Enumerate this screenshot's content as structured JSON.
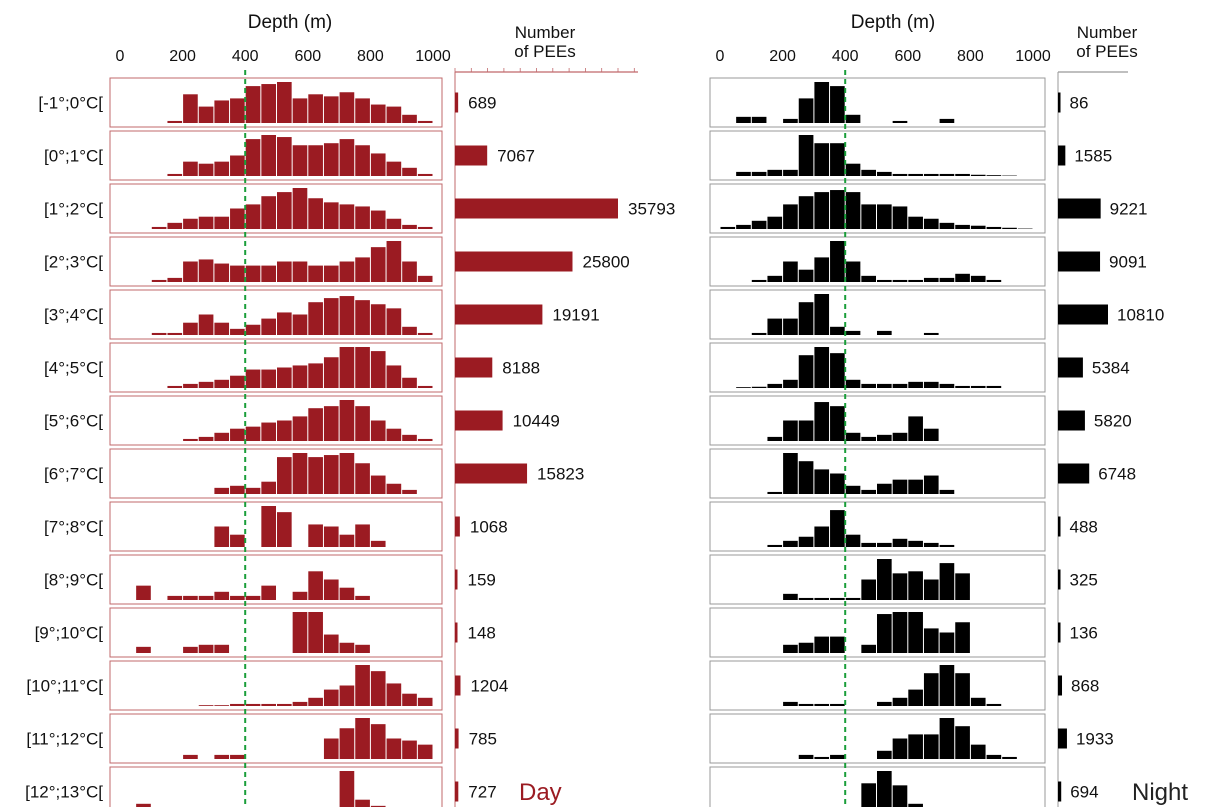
{
  "row_labels": [
    "[-1°;0°C[",
    "[0°;1°C[",
    "[1°;2°C[",
    "[2°;3°C[",
    "[3°;4°C[",
    "[4°;5°C[",
    "[5°;6°C[",
    "[6°;7°C[",
    "[7°;8°C[",
    "[8°;9°C[",
    "[9°;10°C[",
    "[10°;11°C[",
    "[11°;12°C[",
    "[12°;13°C["
  ],
  "depth_title": "Depth (m)",
  "count_title_line1": "Number",
  "count_title_line2": "of PEEs",
  "depth_ticks": [
    "0",
    "200",
    "400",
    "600",
    "800",
    "1000"
  ],
  "colors": {
    "day": "#9b1b22",
    "night": "#000000",
    "threshold": "#1a9e3a",
    "frame_day": "#c0686b",
    "frame_night": "#999999"
  },
  "chart_data": [
    {
      "type": "bar",
      "panel": "Day",
      "title": "Day",
      "xlabel": "Depth (m)",
      "xlim": [
        0,
        1000
      ],
      "bin_width_m": 50,
      "threshold_depth_m": 400,
      "categories": [
        "[-1°;0°C[",
        "[0°;1°C[",
        "[1°;2°C[",
        "[2°;3°C[",
        "[3°;4°C[",
        "[4°;5°C[",
        "[5°;6°C[",
        "[6°;7°C[",
        "[7°;8°C[",
        "[8°;9°C[",
        "[9°;10°C[",
        "[10°;11°C[",
        "[11°;12°C[",
        "[12°;13°C["
      ],
      "counts": [
        689,
        7067,
        35793,
        25800,
        19191,
        8188,
        10449,
        15823,
        1068,
        159,
        148,
        1204,
        785,
        727
      ],
      "count_labels": [
        "689",
        "7067",
        "35793",
        "25800",
        "19191",
        "8188",
        "10449",
        "15823",
        "1068",
        "159",
        "148",
        "1204",
        "785",
        "727"
      ],
      "depth_histograms": [
        [
          0,
          0,
          0,
          0.05,
          0.7,
          0.4,
          0.55,
          0.6,
          0.9,
          0.95,
          1.0,
          0.6,
          0.7,
          0.65,
          0.75,
          0.6,
          0.45,
          0.4,
          0.2,
          0.05
        ],
        [
          0,
          0,
          0,
          0.05,
          0.35,
          0.3,
          0.35,
          0.5,
          0.9,
          1.0,
          0.95,
          0.75,
          0.75,
          0.8,
          0.9,
          0.75,
          0.55,
          0.35,
          0.2,
          0.05
        ],
        [
          0,
          0,
          0.05,
          0.15,
          0.25,
          0.3,
          0.3,
          0.5,
          0.6,
          0.8,
          0.9,
          1.0,
          0.75,
          0.65,
          0.6,
          0.55,
          0.45,
          0.25,
          0.1,
          0.05
        ],
        [
          0,
          0,
          0.05,
          0.1,
          0.5,
          0.55,
          0.45,
          0.4,
          0.4,
          0.4,
          0.5,
          0.5,
          0.4,
          0.4,
          0.5,
          0.6,
          0.85,
          1.0,
          0.5,
          0.15
        ],
        [
          0,
          0,
          0.05,
          0.05,
          0.3,
          0.5,
          0.3,
          0.15,
          0.25,
          0.4,
          0.55,
          0.5,
          0.8,
          0.9,
          0.95,
          0.85,
          0.75,
          0.65,
          0.2,
          0.05
        ],
        [
          0,
          0,
          0,
          0.05,
          0.1,
          0.15,
          0.2,
          0.3,
          0.45,
          0.45,
          0.5,
          0.55,
          0.6,
          0.75,
          1.0,
          1.0,
          0.9,
          0.55,
          0.25,
          0.05
        ],
        [
          0,
          0,
          0,
          0,
          0.05,
          0.1,
          0.2,
          0.3,
          0.35,
          0.45,
          0.5,
          0.6,
          0.8,
          0.85,
          1.0,
          0.85,
          0.5,
          0.3,
          0.15,
          0.05
        ],
        [
          0,
          0,
          0,
          0,
          0,
          0,
          0.15,
          0.2,
          0.15,
          0.3,
          0.9,
          1.0,
          0.9,
          0.95,
          1.0,
          0.75,
          0.45,
          0.25,
          0.1,
          0
        ],
        [
          0,
          0,
          0,
          0,
          0,
          0,
          0.5,
          0.3,
          0,
          1.0,
          0.85,
          0,
          0.55,
          0.5,
          0.3,
          0.55,
          0.15,
          0,
          0,
          0
        ],
        [
          0,
          0.35,
          0,
          0.1,
          0.1,
          0.1,
          0.2,
          0.1,
          0.1,
          0.35,
          0,
          0.2,
          0.7,
          0.5,
          0.3,
          0.1,
          0,
          0,
          0,
          0
        ],
        [
          0,
          0.15,
          0,
          0,
          0.15,
          0.2,
          0.2,
          0,
          0,
          0,
          0,
          1.0,
          1.0,
          0.45,
          0.25,
          0.2,
          0,
          0,
          0,
          0
        ],
        [
          0,
          0,
          0,
          0,
          0,
          0.02,
          0.02,
          0.05,
          0.05,
          0.05,
          0.05,
          0.1,
          0.2,
          0.4,
          0.5,
          1.0,
          0.85,
          0.55,
          0.3,
          0.2
        ],
        [
          0,
          0,
          0,
          0,
          0.1,
          0,
          0.1,
          0.1,
          0,
          0,
          0,
          0,
          0,
          0.5,
          0.75,
          1.0,
          0.85,
          0.5,
          0.45,
          0.35
        ],
        [
          0,
          0.2,
          0.05,
          0,
          0,
          0,
          0,
          0,
          0,
          0,
          0,
          0,
          0,
          0,
          1.0,
          0.3,
          0.15,
          0.05,
          0,
          0.05
        ]
      ]
    },
    {
      "type": "bar",
      "panel": "Night",
      "title": "Night",
      "xlabel": "Depth (m)",
      "xlim": [
        0,
        1000
      ],
      "bin_width_m": 50,
      "threshold_depth_m": 400,
      "categories": [
        "[-1°;0°C[",
        "[0°;1°C[",
        "[1°;2°C[",
        "[2°;3°C[",
        "[3°;4°C[",
        "[4°;5°C[",
        "[5°;6°C[",
        "[6°;7°C[",
        "[7°;8°C[",
        "[8°;9°C[",
        "[9°;10°C[",
        "[10°;11°C[",
        "[11°;12°C[",
        "[12°;13°C["
      ],
      "counts": [
        86,
        1585,
        9221,
        9091,
        10810,
        5384,
        5820,
        6748,
        488,
        325,
        136,
        868,
        1933,
        694
      ],
      "count_labels": [
        "86",
        "1585",
        "9221",
        "9091",
        "10810",
        "5384",
        "5820",
        "6748",
        "488",
        "325",
        "136",
        "868",
        "1933",
        "694"
      ],
      "depth_histograms": [
        [
          0,
          0.15,
          0.15,
          0,
          0.1,
          0.6,
          1.0,
          0.9,
          0.2,
          0,
          0,
          0.05,
          0,
          0,
          0.1,
          0,
          0,
          0,
          0,
          0
        ],
        [
          0,
          0.1,
          0.1,
          0.15,
          0.15,
          1.0,
          0.8,
          0.8,
          0.3,
          0.15,
          0.1,
          0.05,
          0.05,
          0.05,
          0.05,
          0.05,
          0.03,
          0.02,
          0.01,
          0
        ],
        [
          0.05,
          0.1,
          0.2,
          0.3,
          0.6,
          0.8,
          0.9,
          0.95,
          0.9,
          0.6,
          0.6,
          0.55,
          0.3,
          0.25,
          0.15,
          0.1,
          0.08,
          0.05,
          0.03,
          0.01
        ],
        [
          0,
          0,
          0.05,
          0.15,
          0.5,
          0.3,
          0.6,
          1.0,
          0.5,
          0.15,
          0.05,
          0.05,
          0.05,
          0.1,
          0.1,
          0.2,
          0.15,
          0.05,
          0,
          0
        ],
        [
          0,
          0,
          0.05,
          0.4,
          0.4,
          0.8,
          1.0,
          0.2,
          0.1,
          0,
          0.1,
          0,
          0,
          0.05,
          0,
          0,
          0,
          0,
          0,
          0
        ],
        [
          0,
          0.02,
          0.03,
          0.1,
          0.2,
          0.8,
          1.0,
          0.85,
          0.2,
          0.1,
          0.1,
          0.1,
          0.15,
          0.15,
          0.1,
          0.05,
          0.05,
          0.05,
          0,
          0
        ],
        [
          0,
          0,
          0,
          0.1,
          0.5,
          0.5,
          0.95,
          0.85,
          0.2,
          0.1,
          0.15,
          0.2,
          0.6,
          0.3,
          0,
          0,
          0,
          0,
          0,
          0
        ],
        [
          0,
          0,
          0,
          0.05,
          1.0,
          0.8,
          0.6,
          0.5,
          0.2,
          0.1,
          0.25,
          0.35,
          0.35,
          0.45,
          0.1,
          0,
          0,
          0,
          0,
          0
        ],
        [
          0,
          0,
          0,
          0.05,
          0.15,
          0.25,
          0.5,
          0.9,
          0.3,
          0.1,
          0.1,
          0.2,
          0.15,
          0.1,
          0.05,
          0,
          0,
          0,
          0,
          0
        ],
        [
          0,
          0,
          0,
          0,
          0.15,
          0.05,
          0.05,
          0.05,
          0.05,
          0.5,
          1.0,
          0.65,
          0.7,
          0.5,
          0.9,
          0.65,
          0,
          0,
          0,
          0
        ],
        [
          0,
          0,
          0,
          0,
          0.2,
          0.25,
          0.4,
          0.4,
          0,
          0.2,
          0.95,
          1.0,
          1.0,
          0.6,
          0.5,
          0.75,
          0,
          0,
          0,
          0
        ],
        [
          0,
          0,
          0,
          0,
          0.1,
          0.05,
          0.05,
          0.05,
          0,
          0,
          0.1,
          0.2,
          0.4,
          0.8,
          1.0,
          0.8,
          0.2,
          0.05,
          0,
          0
        ],
        [
          0,
          0,
          0,
          0,
          0,
          0.1,
          0.05,
          0.1,
          0,
          0,
          0.2,
          0.5,
          0.6,
          0.6,
          1.0,
          0.8,
          0.35,
          0.1,
          0.05,
          0
        ],
        [
          0,
          0.1,
          0.05,
          0.1,
          0.05,
          0.05,
          0,
          0,
          0,
          0.7,
          1.0,
          0.65,
          0.2,
          0.1,
          0.05,
          0,
          0,
          0,
          0,
          0
        ]
      ]
    }
  ]
}
